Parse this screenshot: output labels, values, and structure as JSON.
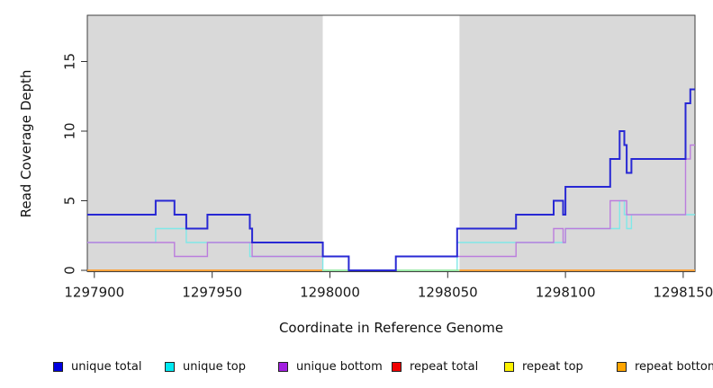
{
  "chart_data": {
    "type": "line",
    "step": true,
    "title": "",
    "xlabel": "Coordinate in Reference Genome",
    "ylabel": "Read Coverage Depth",
    "x_ticks": [
      1297900,
      1297950,
      1298000,
      1298050,
      1298100,
      1298150
    ],
    "y_ticks": [
      0,
      5,
      10,
      15
    ],
    "x_range": [
      1297897,
      1298155
    ],
    "y_range": [
      0,
      18.3
    ],
    "grid": false,
    "legend_position": "bottom",
    "background_regions": [
      {
        "name": "repeat-region-left",
        "from": 1297897,
        "to": 1297997,
        "color": "#d9d9d9"
      },
      {
        "name": "non-repeat-gap",
        "from": 1297997,
        "to": 1298055,
        "color": "#ffffff"
      },
      {
        "name": "repeat-region-right",
        "from": 1298055,
        "to": 1298155,
        "color": "#d9d9d9"
      }
    ],
    "series": [
      {
        "name": "repeat total",
        "color": "#e60000",
        "width": 1.2,
        "in_legend": true,
        "runs": [
          [
            [
              1297897,
              0
            ],
            [
              1297997,
              0
            ]
          ],
          [
            [
              1298055,
              0
            ],
            [
              1298155,
              0
            ]
          ]
        ]
      },
      {
        "name": "repeat top",
        "color": "#f2e500",
        "width": 1.2,
        "in_legend": true,
        "runs": [
          [
            [
              1297897,
              0
            ],
            [
              1297997,
              0
            ]
          ],
          [
            [
              1298055,
              0
            ],
            [
              1298155,
              0
            ]
          ]
        ]
      },
      {
        "name": "repeat bottom",
        "color": "#ff9f33",
        "width": 1.7,
        "in_legend": true,
        "runs": [
          [
            [
              1297897,
              0
            ],
            [
              1297997,
              0
            ]
          ],
          [
            [
              1298055,
              0
            ],
            [
              1298155,
              0
            ]
          ]
        ]
      },
      {
        "name": "unique top",
        "color": "#80e8e8",
        "width": 1.4,
        "in_legend": true,
        "runs": [
          [
            [
              1297897,
              2
            ],
            [
              1297926,
              3
            ],
            [
              1297939,
              2
            ],
            [
              1297966,
              1
            ],
            [
              1297997,
              0
            ],
            [
              1298054,
              2
            ],
            [
              1298100,
              3
            ],
            [
              1298123,
              5
            ],
            [
              1298125,
              4
            ],
            [
              1298126,
              3
            ],
            [
              1298128,
              4
            ],
            [
              1298155,
              4
            ]
          ]
        ]
      },
      {
        "name": "gap baseline",
        "color": "#90e890",
        "width": 1.4,
        "in_legend": false,
        "runs": [
          [
            [
              1297997,
              0
            ],
            [
              1298055,
              0
            ]
          ]
        ]
      },
      {
        "name": "unique bottom",
        "color": "#bb7ddd",
        "width": 1.4,
        "in_legend": true,
        "runs": [
          [
            [
              1297897,
              2
            ],
            [
              1297934,
              1
            ],
            [
              1297948,
              2
            ],
            [
              1297967,
              1
            ],
            [
              1298008,
              0
            ],
            [
              1298028,
              1
            ],
            [
              1298079,
              2
            ],
            [
              1298095,
              3
            ],
            [
              1298099,
              2
            ],
            [
              1298100,
              3
            ],
            [
              1298119,
              5
            ],
            [
              1298126,
              4
            ],
            [
              1298151,
              8
            ],
            [
              1298153,
              9
            ],
            [
              1298155,
              9
            ]
          ]
        ]
      },
      {
        "name": "unique total",
        "color": "#2828d4",
        "width": 2,
        "in_legend": true,
        "runs": [
          [
            [
              1297897,
              4
            ],
            [
              1297926,
              5
            ],
            [
              1297934,
              4
            ],
            [
              1297939,
              3
            ],
            [
              1297948,
              4
            ],
            [
              1297966,
              3
            ],
            [
              1297967,
              2
            ],
            [
              1297997,
              1
            ],
            [
              1298008,
              0
            ],
            [
              1298028,
              1
            ],
            [
              1298054,
              3
            ],
            [
              1298079,
              4
            ],
            [
              1298095,
              5
            ],
            [
              1298099,
              4
            ],
            [
              1298100,
              6
            ],
            [
              1298119,
              8
            ],
            [
              1298123,
              10
            ],
            [
              1298125,
              9
            ],
            [
              1298126,
              7
            ],
            [
              1298128,
              8
            ],
            [
              1298151,
              12
            ],
            [
              1298153,
              13
            ],
            [
              1298155,
              13
            ]
          ]
        ]
      }
    ]
  },
  "legend": {
    "items": [
      {
        "label": "unique total",
        "color": "#0000e0"
      },
      {
        "label": "unique top",
        "color": "#00eaf2"
      },
      {
        "label": "unique bottom",
        "color": "#a21fe0"
      },
      {
        "label": "repeat total",
        "color": "#f00000"
      },
      {
        "label": "repeat top",
        "color": "#fdf200"
      },
      {
        "label": "repeat bottom",
        "color": "#ffa500"
      }
    ]
  }
}
